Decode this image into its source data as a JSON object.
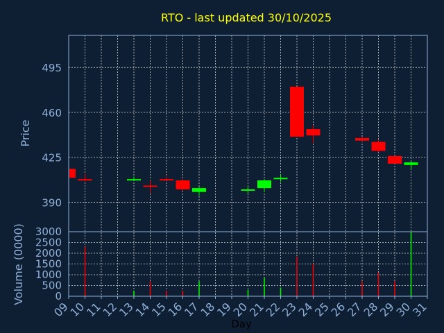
{
  "chart_data": {
    "title": "RTO - last updated 30/10/2025",
    "type": "candlestick",
    "xlabel": "Day",
    "days": [
      "09",
      "10",
      "11",
      "12",
      "13",
      "14",
      "15",
      "16",
      "17",
      "18",
      "19",
      "20",
      "21",
      "22",
      "23",
      "24",
      "25",
      "26",
      "27",
      "28",
      "29",
      "30",
      "31"
    ],
    "price_panel": {
      "ylabel": "Price",
      "ylim": [
        367,
        520
      ],
      "yticks": [
        390,
        425,
        460,
        495
      ],
      "grid": true,
      "candles": [
        {
          "day": 9.0,
          "open": 416,
          "close": 409,
          "high": 417,
          "low": 408,
          "color": "red"
        },
        {
          "day": 10.0,
          "open": 408,
          "close": 408,
          "high": 412,
          "low": 406,
          "color": "red"
        },
        {
          "day": 13.0,
          "open": 408,
          "close": 408,
          "high": 410,
          "low": 407,
          "color": "green"
        },
        {
          "day": 14.0,
          "open": 403,
          "close": 403,
          "high": 407,
          "low": 397,
          "color": "red"
        },
        {
          "day": 15.0,
          "open": 408,
          "close": 408,
          "high": 410,
          "low": 407,
          "color": "red"
        },
        {
          "day": 16.0,
          "open": 407,
          "close": 400,
          "high": 408,
          "low": 399,
          "color": "red"
        },
        {
          "day": 17.0,
          "open": 398,
          "close": 401,
          "high": 402,
          "low": 395,
          "color": "green"
        },
        {
          "day": 20.0,
          "open": 400,
          "close": 400,
          "high": 402,
          "low": 397,
          "color": "green"
        },
        {
          "day": 21.0,
          "open": 401,
          "close": 407,
          "high": 408,
          "low": 398,
          "color": "green"
        },
        {
          "day": 22.0,
          "open": 409,
          "close": 409,
          "high": 412,
          "low": 406,
          "color": "green"
        },
        {
          "day": 23.0,
          "open": 480,
          "close": 441,
          "high": 480,
          "low": 441,
          "color": "red"
        },
        {
          "day": 24.0,
          "open": 447,
          "close": 442,
          "high": 450,
          "low": 436,
          "color": "red"
        },
        {
          "day": 27.0,
          "open": 440,
          "close": 438,
          "high": 441,
          "low": 437,
          "color": "red"
        },
        {
          "day": 28.0,
          "open": 437,
          "close": 430,
          "high": 439,
          "low": 429,
          "color": "red"
        },
        {
          "day": 29.0,
          "open": 426,
          "close": 420,
          "high": 426,
          "low": 420,
          "color": "red"
        },
        {
          "day": 30.0,
          "open": 419,
          "close": 421,
          "high": 422,
          "low": 416,
          "color": "green"
        }
      ]
    },
    "volume_panel": {
      "ylabel": "Volume (0000)",
      "ylim": [
        0,
        3000
      ],
      "yticks": [
        0,
        500,
        1000,
        1500,
        2000,
        2500,
        3000
      ],
      "grid": true,
      "bars": [
        {
          "day": 10.0,
          "value": 2300,
          "color": "red"
        },
        {
          "day": 13.0,
          "value": 250,
          "color": "green"
        },
        {
          "day": 14.0,
          "value": 700,
          "color": "red"
        },
        {
          "day": 15.0,
          "value": 250,
          "color": "red"
        },
        {
          "day": 16.0,
          "value": 250,
          "color": "red"
        },
        {
          "day": 17.0,
          "value": 700,
          "color": "green"
        },
        {
          "day": 20.0,
          "value": 300,
          "color": "green"
        },
        {
          "day": 21.0,
          "value": 850,
          "color": "green"
        },
        {
          "day": 22.0,
          "value": 400,
          "color": "green"
        },
        {
          "day": 23.0,
          "value": 1850,
          "color": "red"
        },
        {
          "day": 24.0,
          "value": 1500,
          "color": "red"
        },
        {
          "day": 27.0,
          "value": 700,
          "color": "red"
        },
        {
          "day": 28.0,
          "value": 1100,
          "color": "red"
        },
        {
          "day": 29.0,
          "value": 700,
          "color": "red"
        },
        {
          "day": 30.0,
          "value": 3000,
          "color": "green"
        }
      ]
    },
    "colors": {
      "background": "#0f1f33",
      "frame": "#8fb0d8",
      "grid": "#ffffff",
      "up": "#00ff00",
      "down": "#ff0000",
      "title": "#ffff00"
    }
  }
}
